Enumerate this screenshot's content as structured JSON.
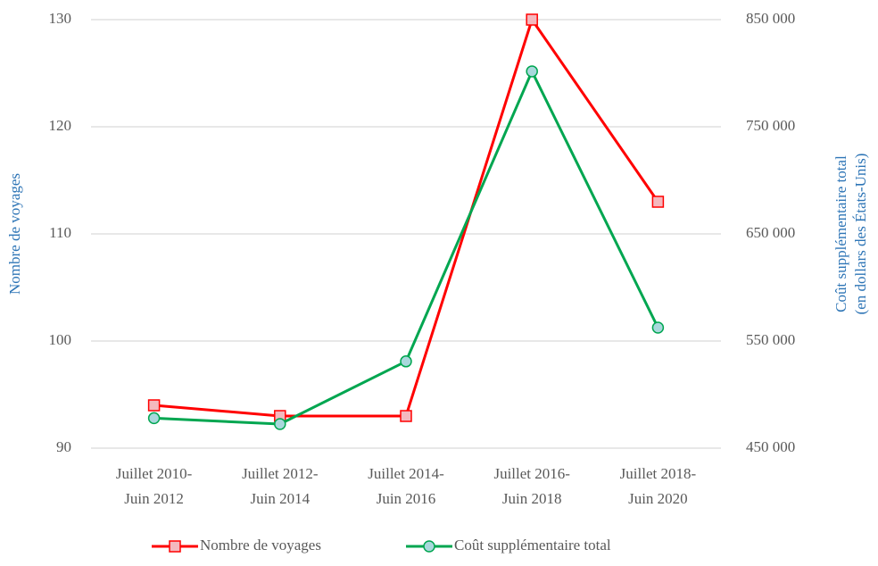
{
  "chart_data": {
    "type": "line",
    "categories": [
      "Juillet 2010-\nJuin 2012",
      "Juillet 2012-\nJuin 2014",
      "Juillet 2014-\nJuin 2016",
      "Juillet 2016-\nJuin 2018",
      "Juillet 2018-\nJuin 2020"
    ],
    "ylabel": "Nombre de voyages",
    "y2label": [
      "Coût supplémentaire total",
      "(en dollars des États-Unis)"
    ],
    "ylim": [
      90,
      130
    ],
    "yticks": [
      90,
      100,
      110,
      120,
      130
    ],
    "y2lim": [
      450000,
      850000
    ],
    "y2ticks": [
      {
        "value": 450000,
        "label": "450 000"
      },
      {
        "value": 550000,
        "label": "550 000"
      },
      {
        "value": 650000,
        "label": "650 000"
      },
      {
        "value": 750000,
        "label": "750 000"
      },
      {
        "value": 850000,
        "label": "850 000"
      }
    ],
    "grid": true,
    "series": [
      {
        "name": "Nombre de voyages",
        "color": "#ff0000",
        "marker_fill": "#f4b8be",
        "marker": "square",
        "values": [
          94,
          93,
          93,
          130,
          113
        ]
      },
      {
        "name": "Coût supplémentaire total",
        "color": "#00a650",
        "marker_fill": "#a9d8dc",
        "marker": "circle",
        "axis": "y2",
        "values": [
          478000,
          472500,
          531000,
          801700,
          562500
        ]
      }
    ]
  }
}
